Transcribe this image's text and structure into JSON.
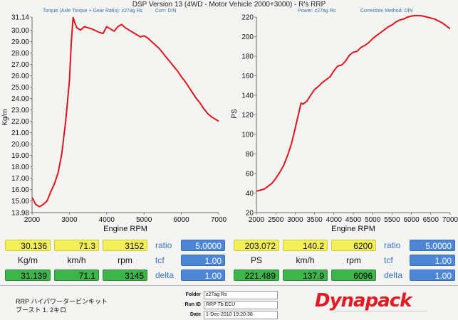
{
  "header": {
    "title": "DSP Version 13 (4WD - Motor Vehicle 2000+3000) - R's  RRP",
    "left_sub": [
      "Torque (Axle Torque + Gear Ratio): z27ag Rs",
      "Corr: DIN"
    ],
    "right_sub": [
      "Power: z27ag Rs",
      "Correction Method: DIN"
    ]
  },
  "chart_data": [
    {
      "type": "line",
      "xlabel": "Engine RPM",
      "ylabel": "Kg/m",
      "xlim": [
        2000,
        7000
      ],
      "ylim": [
        13.98,
        31.14
      ],
      "x_ticks": [
        2000,
        3000,
        4000,
        5000,
        6000,
        7000
      ],
      "y_ticks": [
        "13.98",
        "15.00",
        "16.00",
        "17.00",
        "18.00",
        "19.00",
        "20.00",
        "21.00",
        "22.00",
        "23.00",
        "24.00",
        "25.00",
        "26.00",
        "27.00",
        "28.00",
        "29.00",
        "30.00",
        "31.14"
      ],
      "grid": false,
      "color": "#e0151b",
      "series": [
        {
          "x": [
            2000,
            2100,
            2200,
            2300,
            2400,
            2500,
            2600,
            2700,
            2800,
            2900,
            3000,
            3050,
            3100,
            3150,
            3200,
            3300,
            3400,
            3500,
            3600,
            3700,
            3800,
            3900,
            4000,
            4100,
            4200,
            4300,
            4400,
            4500,
            4600,
            4700,
            4800,
            4900,
            5000,
            5100,
            5200,
            5300,
            5400,
            5500,
            5600,
            5700,
            5800,
            5900,
            6000,
            6100,
            6200,
            6300,
            6400,
            6500,
            6600,
            6700,
            6800,
            6900,
            7000
          ],
          "y": [
            15.3,
            14.7,
            14.5,
            14.7,
            15.0,
            15.8,
            16.5,
            17.5,
            19.2,
            22.0,
            25.5,
            28.8,
            31.1,
            30.6,
            30.2,
            30.0,
            30.3,
            30.2,
            30.1,
            29.95,
            29.8,
            29.7,
            30.3,
            30.1,
            29.9,
            30.3,
            30.5,
            30.2,
            30.0,
            29.8,
            29.6,
            29.4,
            29.5,
            29.3,
            29.0,
            28.7,
            28.4,
            28.0,
            27.6,
            27.2,
            26.8,
            26.4,
            25.9,
            25.5,
            25.0,
            24.5,
            24.0,
            23.6,
            23.1,
            22.7,
            22.4,
            22.2,
            22.0
          ]
        }
      ]
    },
    {
      "type": "line",
      "xlabel": "Engine RPM",
      "ylabel": "PS",
      "xlim": [
        2000,
        7000
      ],
      "ylim": [
        20,
        220
      ],
      "x_ticks": [
        2000,
        2500,
        3000,
        3500,
        4000,
        4500,
        5000,
        5500,
        6000,
        6500,
        7000
      ],
      "y_ticks": [
        20,
        40,
        60,
        80,
        100,
        120,
        140,
        160,
        180,
        200,
        220
      ],
      "grid": false,
      "color": "#e0151b",
      "series": [
        {
          "x": [
            2000,
            2100,
            2200,
            2300,
            2400,
            2500,
            2600,
            2700,
            2800,
            2900,
            3000,
            3100,
            3150,
            3200,
            3300,
            3400,
            3500,
            3600,
            3700,
            3800,
            3900,
            4000,
            4100,
            4200,
            4300,
            4400,
            4500,
            4600,
            4700,
            4800,
            4900,
            5000,
            5100,
            5200,
            5300,
            5400,
            5500,
            5600,
            5700,
            5800,
            5900,
            6000,
            6100,
            6200,
            6300,
            6400,
            6500,
            6600,
            6700,
            6800,
            6900,
            7000
          ],
          "y": [
            42,
            43,
            44,
            47,
            50,
            55,
            61,
            68,
            78,
            90,
            106,
            123,
            132,
            131,
            134,
            140,
            146,
            149,
            153,
            156,
            159,
            165,
            170,
            171,
            175,
            181,
            184,
            185,
            189,
            191,
            194,
            198,
            201,
            204,
            207,
            210,
            212,
            215,
            217,
            218,
            220,
            221,
            221.5,
            221.5,
            221,
            220,
            219,
            218,
            216,
            214,
            211,
            208
          ]
        }
      ]
    }
  ],
  "readouts": {
    "left": {
      "top": [
        "30.136",
        "71.3",
        "3152"
      ],
      "labels": [
        "Kg/m",
        "km/h",
        "rpm"
      ],
      "bottom": [
        "31.139",
        "71.1",
        "3145"
      ],
      "params": [
        {
          "label": "ratio",
          "value": "5.0000"
        },
        {
          "label": "tcf",
          "value": "1.00"
        },
        {
          "label": "delta",
          "value": "1.00"
        }
      ]
    },
    "right": {
      "top": [
        "203.072",
        "140.2",
        "6200"
      ],
      "labels": [
        "PS",
        "km/h",
        "rpm"
      ],
      "bottom": [
        "221.489",
        "137.9",
        "6096"
      ],
      "params": [
        {
          "label": "ratio",
          "value": "5.0000"
        },
        {
          "label": "tcf",
          "value": "1.00"
        },
        {
          "label": "delta",
          "value": "1.00"
        }
      ]
    }
  },
  "footer": {
    "line1": "RRP  ハイパワータービンキット",
    "line2": "ブースト  1. 2キロ",
    "meta": [
      {
        "key": "Folder",
        "value": "z27ag Rs"
      },
      {
        "key": "Run ID",
        "value": "RRP Tb ECU"
      },
      {
        "key": "Date",
        "value": "1-Dec-2010 19:20:38"
      }
    ],
    "logo": "Dynapack",
    "logo_color": "#e01b22"
  }
}
